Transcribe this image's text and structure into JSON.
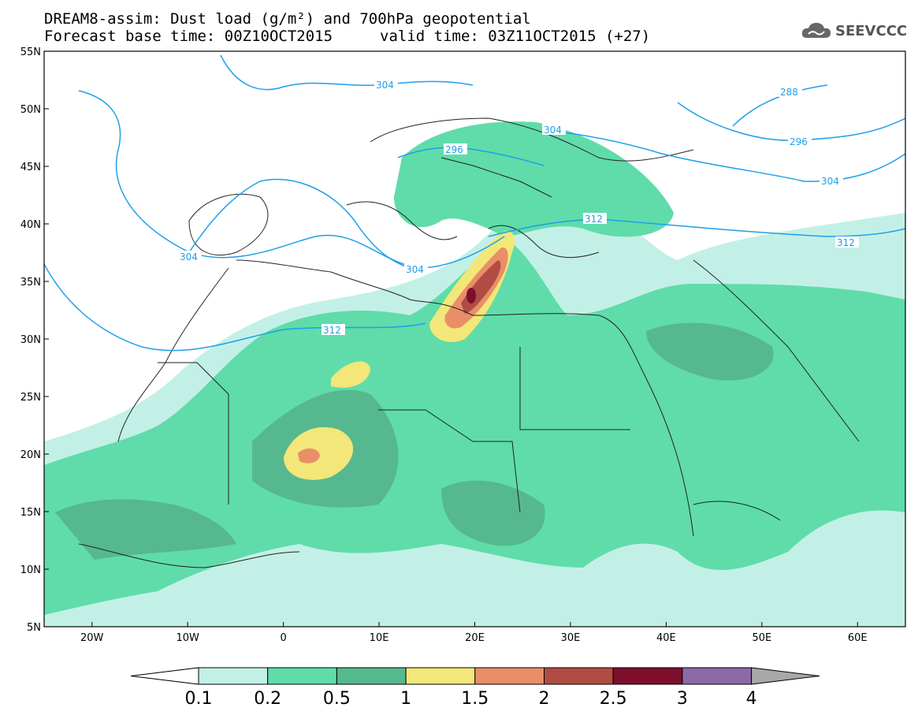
{
  "title": {
    "line1": "DREAM8-assim: Dust load (g/m²) and 700hPa geopotential",
    "line2": "Forecast base time: 00Z10OCT2015",
    "line3": "valid time: 03Z11OCT2015 (+27)"
  },
  "logo": {
    "text": "SEEVCCC",
    "icon": "cloud-logo-icon"
  },
  "map": {
    "lat_ticks": [
      "55N",
      "50N",
      "45N",
      "40N",
      "35N",
      "30N",
      "25N",
      "20N",
      "15N",
      "10N",
      "5N"
    ],
    "lon_ticks": [
      "20W",
      "10W",
      "0",
      "10E",
      "20E",
      "30E",
      "40E",
      "50E",
      "60E"
    ],
    "extent": {
      "lon_min": -25,
      "lon_max": 65,
      "lat_min": 5,
      "lat_max": 55
    }
  },
  "contours": {
    "units": "dam",
    "labels": [
      "304",
      "296",
      "304",
      "288",
      "296",
      "304",
      "312",
      "304",
      "312",
      "312",
      "304"
    ],
    "line_color": "#1f9fe8"
  },
  "colorbar": {
    "labels": [
      "0.1",
      "0.2",
      "0.5",
      "1",
      "1.5",
      "2",
      "2.5",
      "3",
      "4"
    ],
    "colors": [
      "#c3f0e6",
      "#5fdcaa",
      "#56b88e",
      "#f2e778",
      "#e98f67",
      "#b14c44",
      "#7d0f2c",
      "#8a6aa5"
    ],
    "under_color": "#ffffff",
    "over_color": "#a8a8a8"
  }
}
